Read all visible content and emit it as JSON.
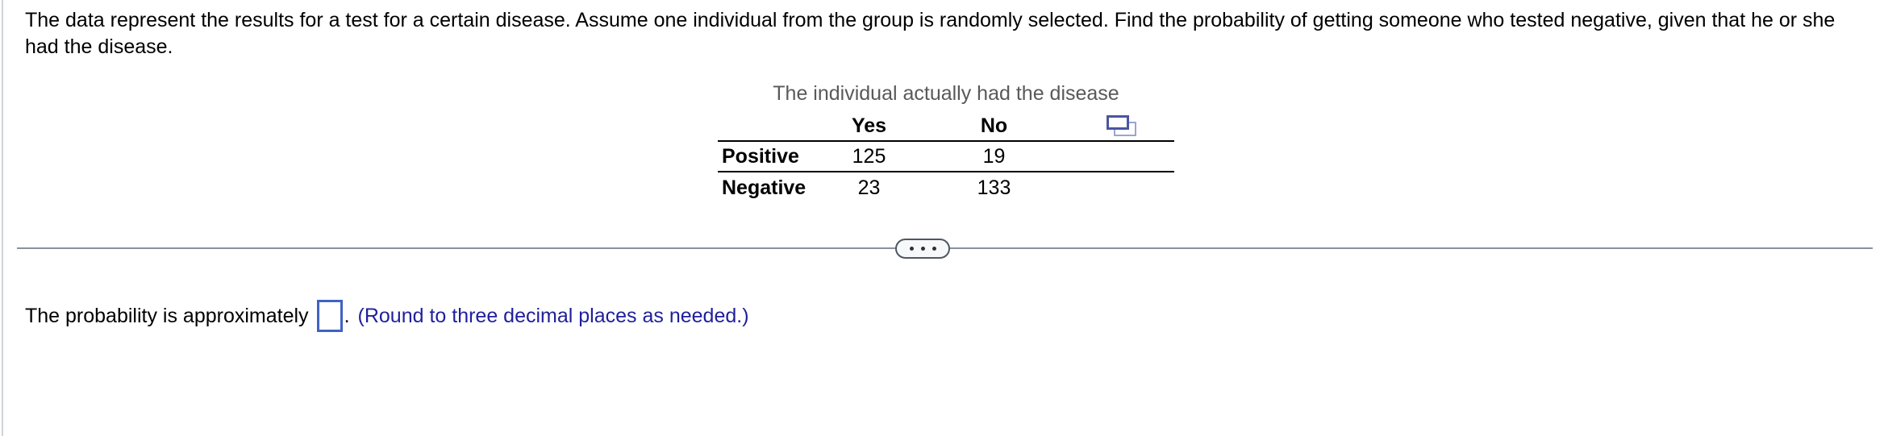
{
  "question": {
    "text": "The data represent the results for a test for a certain disease. Assume one individual from the group is randomly selected. Find the probability of getting someone who tested negative, given that he or she had the disease."
  },
  "table": {
    "title": "The individual actually had the disease",
    "col_headers": [
      "Yes",
      "No"
    ],
    "rows": [
      {
        "label": "Positive",
        "yes": "125",
        "no": "19"
      },
      {
        "label": "Negative",
        "yes": "23",
        "no": "133"
      }
    ],
    "icons": {
      "copy": "copy-table-icon"
    }
  },
  "divider": {
    "icons": {
      "ellipsis": "ellipsis-icon"
    }
  },
  "answer": {
    "prefix": "The probability is approximately",
    "input_value": "",
    "period": ".",
    "instruction": "(Round to three decimal places as needed.)"
  },
  "colors": {
    "instruction_blue": "#1f1f9c",
    "input_border_blue": "#3f63c5",
    "table_title_gray": "#58595b",
    "divider_gray": "#8a919e",
    "copy_icon_dark": "#4a55a4",
    "copy_icon_light": "#9aa5d1"
  }
}
